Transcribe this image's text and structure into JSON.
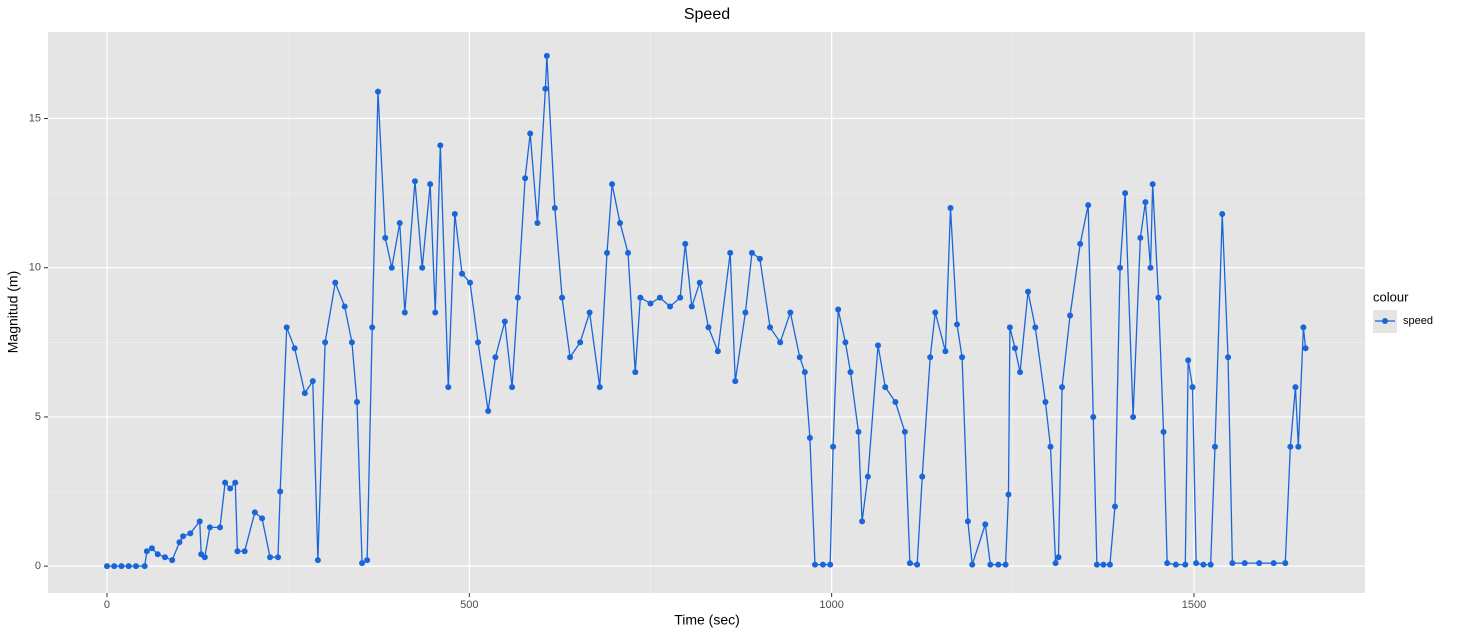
{
  "chart_data": {
    "type": "line",
    "title": "Speed",
    "x_label": "Time (sec)",
    "y_label": "Magnitud (m)",
    "legend_title": "colour",
    "legend_position": "right",
    "grid": true,
    "x": [
      0,
      10,
      20,
      30,
      40,
      52,
      55,
      62,
      70,
      80,
      90,
      100,
      105,
      115,
      128,
      130,
      135,
      142,
      156,
      163,
      170,
      177,
      180,
      190,
      204,
      214,
      225,
      236,
      239,
      248,
      259,
      273,
      284,
      291,
      301,
      315,
      328,
      338,
      345,
      352,
      359,
      366,
      374,
      384,
      393,
      404,
      411,
      425,
      435,
      446,
      453,
      460,
      471,
      480,
      490,
      501,
      512,
      526,
      536,
      549,
      559,
      567,
      577,
      584,
      594,
      605,
      607,
      618,
      628,
      639,
      653,
      666,
      680,
      690,
      697,
      708,
      719,
      729,
      736,
      750,
      763,
      777,
      791,
      798,
      807,
      818,
      830,
      843,
      860,
      867,
      881,
      890,
      901,
      915,
      929,
      943,
      956,
      963,
      970,
      977,
      988,
      998,
      1002,
      1009,
      1019,
      1026,
      1037,
      1042,
      1050,
      1064,
      1074,
      1088,
      1101,
      1108,
      1118,
      1125,
      1136,
      1143,
      1157,
      1164,
      1173,
      1180,
      1188,
      1194,
      1212,
      1219,
      1230,
      1240,
      1244,
      1246,
      1253,
      1260,
      1271,
      1281,
      1295,
      1302,
      1309,
      1313,
      1318,
      1329,
      1343,
      1354,
      1361,
      1366,
      1375,
      1384,
      1391,
      1398,
      1405,
      1416,
      1426,
      1433,
      1440,
      1443,
      1451,
      1458,
      1463,
      1475,
      1488,
      1492,
      1498,
      1503,
      1513,
      1523,
      1529,
      1539,
      1547,
      1553,
      1570,
      1590,
      1610,
      1626,
      1633,
      1640,
      1644,
      1651,
      1654
    ],
    "series": [
      {
        "name": "speed",
        "color": "#1a66d9",
        "values": [
          0,
          0,
          0,
          0,
          0,
          0,
          0.5,
          0.6,
          0.4,
          0.3,
          0.2,
          0.8,
          1.0,
          1.1,
          1.5,
          0.4,
          0.3,
          1.3,
          1.3,
          2.8,
          2.6,
          2.8,
          0.5,
          0.5,
          1.8,
          1.6,
          0.3,
          0.3,
          2.5,
          8.0,
          7.3,
          5.8,
          6.2,
          0.2,
          7.5,
          9.5,
          8.7,
          7.5,
          5.5,
          0.1,
          0.2,
          8.0,
          15.9,
          11.0,
          10.0,
          11.5,
          8.5,
          12.9,
          10.0,
          12.8,
          8.5,
          14.1,
          6.0,
          11.8,
          9.8,
          9.5,
          7.5,
          5.2,
          7.0,
          8.2,
          6.0,
          9.0,
          13.0,
          14.5,
          11.5,
          16.0,
          17.1,
          12.0,
          9.0,
          7.0,
          7.5,
          8.5,
          6.0,
          10.5,
          12.8,
          11.5,
          10.5,
          6.5,
          9.0,
          8.8,
          9.0,
          8.7,
          9.0,
          10.8,
          8.7,
          9.5,
          8.0,
          7.2,
          10.5,
          6.2,
          8.5,
          10.5,
          10.3,
          8.0,
          7.5,
          8.5,
          7.0,
          6.5,
          4.3,
          0.05,
          0.05,
          0.05,
          4.0,
          8.6,
          7.5,
          6.5,
          4.5,
          1.5,
          3.0,
          7.4,
          6.0,
          5.5,
          4.5,
          0.1,
          0.05,
          3.0,
          7.0,
          8.5,
          7.2,
          12.0,
          8.1,
          7.0,
          1.5,
          0.05,
          1.4,
          0.05,
          0.05,
          0.05,
          2.4,
          8.0,
          7.3,
          6.5,
          9.2,
          8.0,
          5.5,
          4.0,
          0.1,
          0.3,
          6.0,
          8.4,
          10.8,
          12.1,
          5.0,
          0.05,
          0.05,
          0.05,
          2.0,
          10.0,
          12.5,
          5.0,
          11.0,
          12.2,
          10.0,
          12.8,
          9.0,
          4.5,
          0.1,
          0.05,
          0.05,
          6.9,
          6.0,
          0.1,
          0.05,
          0.05,
          4.0,
          11.8,
          7.0,
          0.1,
          0.1,
          0.1,
          0.1,
          0.1,
          4.0,
          6.0,
          4.0,
          8.0,
          7.3
        ]
      }
    ],
    "xlim": [
      -81.4,
      1736
    ],
    "ylim": [
      -0.9,
      17.9
    ],
    "xticks": [
      0,
      500,
      1000,
      1500
    ],
    "yticks": [
      0,
      5,
      10,
      15
    ]
  }
}
